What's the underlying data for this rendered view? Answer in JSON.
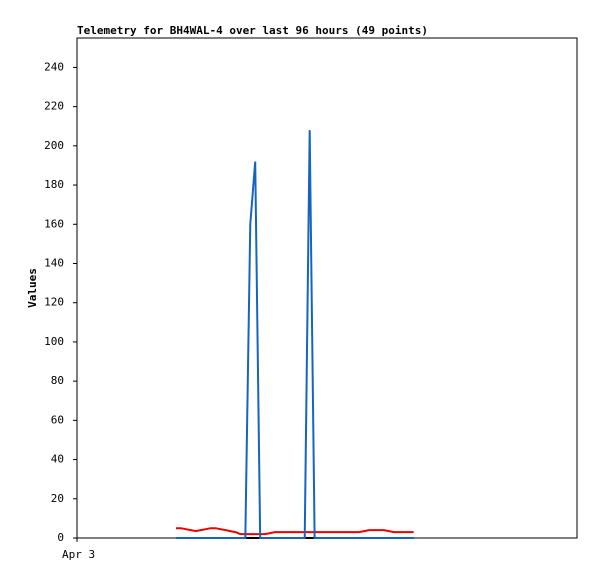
{
  "chart_data": {
    "type": "line",
    "title": "Telemetry for BH4WAL-4 over last 96 hours (49 points)",
    "y_label": "Values",
    "x": [
      40,
      42,
      44,
      46,
      48,
      50,
      52,
      54,
      56,
      58,
      60,
      62,
      64,
      66,
      68,
      70,
      72,
      74,
      76,
      78,
      80,
      82,
      84,
      86,
      88,
      90,
      92,
      94,
      96,
      98,
      100,
      102,
      104,
      106,
      108,
      110,
      112,
      114,
      116,
      118,
      120,
      122,
      124,
      126,
      128,
      130,
      132,
      134,
      136
    ],
    "series": [
      {
        "color": "#000000",
        "values": [
          0,
          0,
          0,
          0,
          0,
          0,
          0,
          0,
          0,
          0,
          0,
          0,
          0,
          0,
          0,
          0,
          0,
          0,
          0,
          0,
          0,
          0,
          0,
          0,
          0,
          0,
          0,
          0,
          0,
          0,
          0,
          0,
          0,
          0,
          0,
          0,
          0,
          0,
          0,
          0,
          0,
          0,
          0,
          0,
          0,
          0,
          0,
          0,
          0
        ]
      },
      {
        "color": "#ee0000",
        "values": [
          5,
          5,
          4.5,
          4,
          3.5,
          4,
          4.5,
          5,
          5,
          4.5,
          4,
          3.5,
          3,
          2,
          2,
          2,
          2,
          2,
          2,
          2.5,
          3,
          3,
          3,
          3,
          3,
          3,
          3,
          3,
          3,
          3,
          3,
          3,
          3,
          3,
          3,
          3,
          3,
          3,
          3.5,
          4,
          4,
          4,
          4,
          3.5,
          3,
          3,
          3,
          3,
          3
        ]
      },
      {
        "color": "#1565c0",
        "values": [
          0,
          0,
          0,
          0,
          0,
          0,
          0,
          0,
          0,
          0,
          0,
          0,
          0,
          0,
          0,
          160,
          192,
          0,
          0,
          0,
          0,
          0,
          0,
          0,
          0,
          0,
          0,
          208,
          0,
          0,
          0,
          0,
          0,
          0,
          0,
          0,
          0,
          0,
          0,
          0,
          0,
          0,
          0,
          0,
          0,
          0,
          0,
          0,
          0
        ]
      }
    ],
    "xlim": [
      0,
      202
    ],
    "xticks": [
      {
        "value": 0,
        "label": "Apr 3"
      }
    ],
    "ylim": [
      0,
      255
    ],
    "yticks": [
      0,
      20,
      40,
      60,
      80,
      100,
      120,
      140,
      160,
      180,
      200,
      220,
      240
    ]
  }
}
